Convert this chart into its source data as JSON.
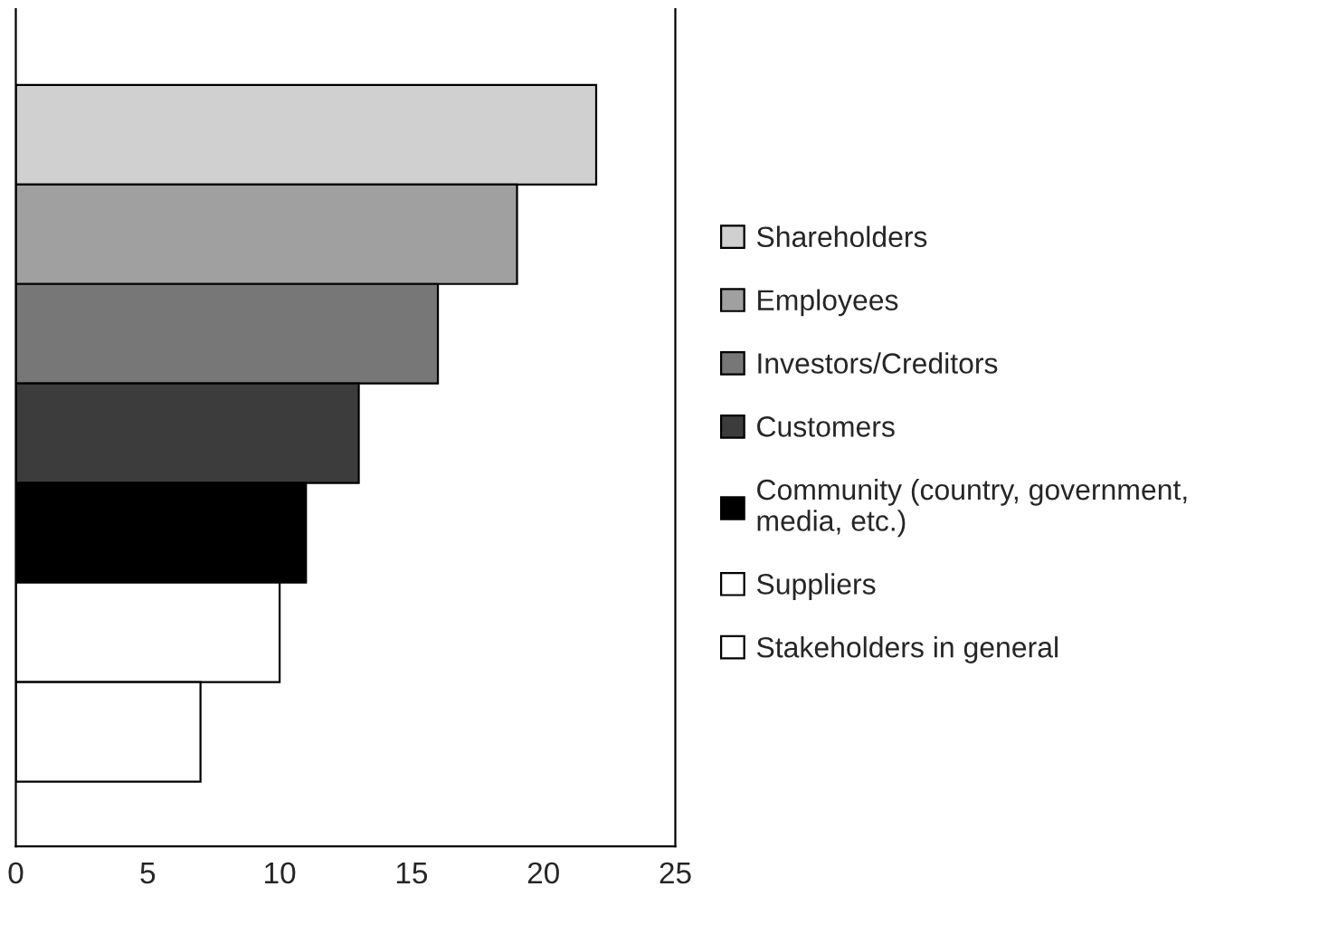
{
  "chart_data": {
    "type": "bar",
    "orientation": "horizontal",
    "stacked": true,
    "categories": [
      null,
      null,
      null,
      null,
      null,
      null,
      null
    ],
    "series": [
      {
        "name": "Shareholders",
        "color": "#d0d0d0",
        "values": [
          22,
          null,
          null,
          null,
          null,
          null,
          null
        ]
      },
      {
        "name": "Employees",
        "color": "#a0a0a0",
        "values": [
          null,
          19,
          null,
          null,
          null,
          null,
          null
        ]
      },
      {
        "name": "Investors/Creditors",
        "color": "#777777",
        "values": [
          null,
          null,
          16,
          null,
          null,
          null,
          null
        ]
      },
      {
        "name": "Customers",
        "color": "#3c3c3c",
        "values": [
          null,
          null,
          null,
          13,
          null,
          null,
          null
        ]
      },
      {
        "name": "Community (country, government,\nmedia, etc.)",
        "color": "#000000",
        "values": [
          null,
          null,
          null,
          null,
          11,
          null,
          null
        ]
      },
      {
        "name": "Suppliers",
        "color": "#ffffff",
        "values": [
          null,
          null,
          null,
          null,
          null,
          10,
          null
        ]
      },
      {
        "name": "Stakeholders in general",
        "color": "#ffffff",
        "values": [
          null,
          null,
          null,
          null,
          null,
          null,
          7
        ]
      }
    ],
    "xlim": [
      0,
      25
    ],
    "xticks": [
      0,
      5,
      10,
      15,
      20,
      25
    ],
    "legend": "right",
    "grid": false
  }
}
